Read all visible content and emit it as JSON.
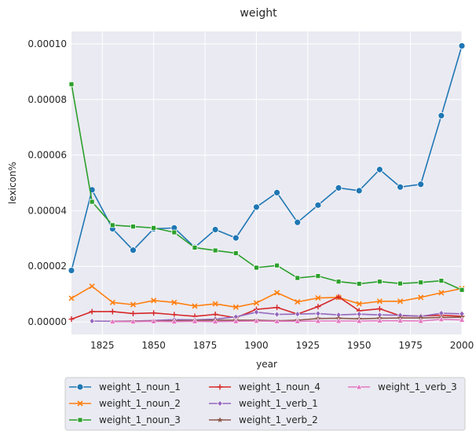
{
  "chart_data": {
    "type": "line",
    "title": "weight",
    "xlabel": "year",
    "ylabel": "lexicon%",
    "xlim": [
      1810,
      2000
    ],
    "ylim": [
      -4.5e-06,
      0.0001045
    ],
    "x_ticks": [
      1825,
      1850,
      1875,
      1900,
      1925,
      1950,
      1975,
      2000
    ],
    "y_ticks": [
      0.0,
      2e-05,
      4e-05,
      6e-05,
      8e-05,
      0.0001
    ],
    "x_tick_labels": [
      "1825",
      "1850",
      "1875",
      "1900",
      "1925",
      "1950",
      "1975",
      "2000"
    ],
    "y_tick_labels": [
      "0.00000",
      "0.00002",
      "0.00004",
      "0.00006",
      "0.00008",
      "0.00010"
    ],
    "grid": true,
    "legend_position": "bottom",
    "series": [
      {
        "name": "weight_1_noun_1",
        "color": "#1f77b4",
        "marker": "circle",
        "x": [
          1810,
          1820,
          1830,
          1840,
          1850,
          1860,
          1870,
          1880,
          1890,
          1900,
          1910,
          1920,
          1930,
          1940,
          1950,
          1960,
          1970,
          1980,
          1990,
          2000
        ],
        "y": [
          1.85e-05,
          4.75e-05,
          3.35e-05,
          2.58e-05,
          3.35e-05,
          3.38e-05,
          2.68e-05,
          3.32e-05,
          3.02e-05,
          4.13e-05,
          4.65e-05,
          3.58e-05,
          4.2e-05,
          4.82e-05,
          4.72e-05,
          5.48e-05,
          4.85e-05,
          4.95e-05,
          7.42e-05,
          9.93e-05
        ]
      },
      {
        "name": "weight_1_noun_2",
        "color": "#ff7f0e",
        "marker": "x",
        "x": [
          1810,
          1820,
          1830,
          1840,
          1850,
          1860,
          1870,
          1880,
          1890,
          1900,
          1910,
          1920,
          1930,
          1940,
          1950,
          1960,
          1970,
          1980,
          1990,
          2000
        ],
        "y": [
          8.5e-06,
          1.28e-05,
          7e-06,
          6.2e-06,
          7.7e-06,
          7e-06,
          5.7e-06,
          6.5e-06,
          5.3e-06,
          6.8e-06,
          1.05e-05,
          7.2e-06,
          8.6e-06,
          8.8e-06,
          6.5e-06,
          7.4e-06,
          7.4e-06,
          8.8e-06,
          1.05e-05,
          1.2e-05
        ]
      },
      {
        "name": "weight_1_noun_3",
        "color": "#2ca02c",
        "marker": "square",
        "x": [
          1810,
          1820,
          1830,
          1840,
          1850,
          1860,
          1870,
          1880,
          1890,
          1900,
          1910,
          1920,
          1930,
          1940,
          1950,
          1960,
          1970,
          1980,
          1990,
          2000
        ],
        "y": [
          8.55e-05,
          4.32e-05,
          3.48e-05,
          3.43e-05,
          3.38e-05,
          3.22e-05,
          2.67e-05,
          2.57e-05,
          2.47e-05,
          1.95e-05,
          2.03e-05,
          1.58e-05,
          1.65e-05,
          1.45e-05,
          1.37e-05,
          1.45e-05,
          1.38e-05,
          1.42e-05,
          1.48e-05,
          1.15e-05
        ]
      },
      {
        "name": "weight_1_noun_4",
        "color": "#d62728",
        "marker": "plus",
        "x": [
          1810,
          1820,
          1830,
          1840,
          1850,
          1860,
          1870,
          1880,
          1890,
          1900,
          1910,
          1920,
          1930,
          1940,
          1950,
          1960,
          1970,
          1980,
          1990,
          2000
        ],
        "y": [
          1e-06,
          3.7e-06,
          3.7e-06,
          3e-06,
          3.2e-06,
          2.6e-06,
          2e-06,
          2.7e-06,
          1.5e-06,
          4.5e-06,
          5.2e-06,
          2.8e-06,
          5.5e-06,
          9e-06,
          4e-06,
          4.7e-06,
          2.2e-06,
          2.1e-06,
          2.4e-06,
          2e-06
        ]
      },
      {
        "name": "weight_1_verb_1",
        "color": "#9467bd",
        "marker": "diamond",
        "x": [
          1820,
          1830,
          1840,
          1850,
          1860,
          1870,
          1880,
          1890,
          1900,
          1910,
          1920,
          1930,
          1940,
          1950,
          1960,
          1970,
          1980,
          1990,
          2000
        ],
        "y": [
          3e-07,
          2e-07,
          3e-07,
          5e-07,
          8e-07,
          7e-07,
          1e-06,
          1.8e-06,
          3.5e-06,
          2.7e-06,
          2.8e-06,
          3e-06,
          2.5e-06,
          2.8e-06,
          2.5e-06,
          2.4e-06,
          2e-06,
          3.1e-06,
          2.9e-06
        ]
      },
      {
        "name": "weight_1_verb_2",
        "color": "#8c564b",
        "marker": "star",
        "x": [
          1830,
          1840,
          1850,
          1860,
          1870,
          1880,
          1890,
          1900,
          1910,
          1920,
          1930,
          1940,
          1950,
          1960,
          1970,
          1980,
          1990,
          2000
        ],
        "y": [
          1e-07,
          2e-07,
          3e-07,
          4e-07,
          5e-07,
          6e-07,
          6e-07,
          6e-07,
          4e-07,
          6e-07,
          1.2e-06,
          1.3e-06,
          1.1e-06,
          1.3e-06,
          1.4e-06,
          1.4e-06,
          1.6e-06,
          1.7e-06
        ]
      },
      {
        "name": "weight_1_verb_3",
        "color": "#e377c2",
        "marker": "triangle",
        "x": [
          1830,
          1840,
          1850,
          1860,
          1870,
          1880,
          1890,
          1900,
          1910,
          1920,
          1930,
          1940,
          1950,
          1960,
          1970,
          1980,
          1990,
          2000
        ],
        "y": [
          1e-07,
          1e-07,
          2e-07,
          1e-07,
          2e-07,
          1e-07,
          2e-07,
          3e-07,
          2e-07,
          2e-07,
          3e-07,
          3e-07,
          3e-07,
          4e-07,
          4e-07,
          3e-07,
          9e-07,
          7e-07
        ]
      }
    ]
  }
}
